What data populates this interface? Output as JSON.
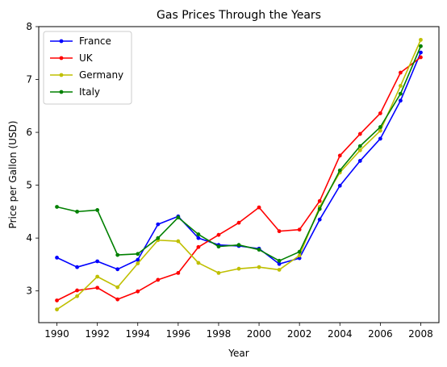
{
  "chart_data": {
    "type": "line",
    "title": "Gas Prices Through the Years",
    "xlabel": "Year",
    "ylabel": "Price per Gallon (USD)",
    "x": [
      1990,
      1991,
      1992,
      1993,
      1994,
      1995,
      1996,
      1997,
      1998,
      1999,
      2000,
      2001,
      2002,
      2003,
      2004,
      2005,
      2006,
      2007,
      2008
    ],
    "xticks": [
      1990,
      1992,
      1994,
      1996,
      1998,
      2000,
      2002,
      2004,
      2006,
      2008
    ],
    "yticks": [
      3,
      4,
      5,
      6,
      7,
      8
    ],
    "xlim": [
      1989.1,
      2008.9
    ],
    "ylim": [
      2.4,
      8.0
    ],
    "legend_position": "top-left",
    "grid": false,
    "series": [
      {
        "name": "France",
        "color": "#0000ff",
        "values": [
          3.63,
          3.45,
          3.56,
          3.41,
          3.59,
          4.26,
          4.41,
          4.0,
          3.87,
          3.85,
          3.8,
          3.51,
          3.62,
          4.35,
          4.99,
          5.46,
          5.88,
          6.6,
          7.51
        ]
      },
      {
        "name": "UK",
        "color": "#ff0000",
        "values": [
          2.82,
          3.01,
          3.06,
          2.84,
          2.99,
          3.21,
          3.34,
          3.83,
          4.06,
          4.29,
          4.58,
          4.13,
          4.16,
          4.7,
          5.56,
          5.97,
          6.36,
          7.13,
          7.42
        ]
      },
      {
        "name": "Germany",
        "color": "#bfbf00",
        "values": [
          2.65,
          2.9,
          3.27,
          3.07,
          3.52,
          3.96,
          3.94,
          3.53,
          3.34,
          3.42,
          3.45,
          3.4,
          3.67,
          4.59,
          5.24,
          5.66,
          6.03,
          6.88,
          7.75
        ]
      },
      {
        "name": "Italy",
        "color": "#008000",
        "values": [
          4.59,
          4.5,
          4.53,
          3.68,
          3.7,
          4.0,
          4.39,
          4.07,
          3.84,
          3.87,
          3.78,
          3.57,
          3.74,
          4.55,
          5.28,
          5.74,
          6.1,
          6.73,
          7.63
        ]
      }
    ]
  }
}
